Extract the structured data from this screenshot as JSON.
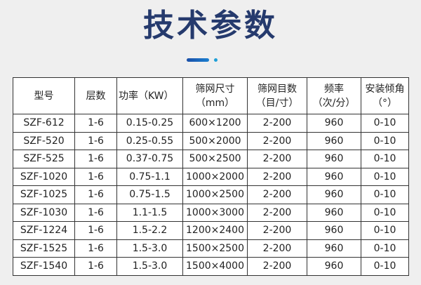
{
  "title": "技术参数",
  "accent_colors": {
    "title": "#253a6d",
    "bar": "#1a5fb8",
    "dot": "#1fa0d8"
  },
  "table": {
    "headers": [
      [
        "型号"
      ],
      [
        "层数"
      ],
      [
        "功率（KW）"
      ],
      [
        "筛网尺寸",
        "（mm）"
      ],
      [
        "筛网目数",
        "（目/寸）"
      ],
      [
        "频率",
        "（次/分）"
      ],
      [
        "安装倾角",
        "（°）"
      ]
    ],
    "rows": [
      [
        "SZF-612",
        "1-6",
        "0.15-0.25",
        "600×1200",
        "2-200",
        "960",
        "0-10"
      ],
      [
        "SZF-520",
        "1-6",
        "0.25-0.55",
        "500×2000",
        "2-200",
        "960",
        "0-10"
      ],
      [
        "SZF-525",
        "1-6",
        "0.37-0.75",
        "500×2500",
        "2-200",
        "960",
        "0-10"
      ],
      [
        "SZF-1020",
        "1-6",
        "0.75-1.1",
        "1000×2000",
        "2-200",
        "960",
        "0-10"
      ],
      [
        "SZF-1025",
        "1-6",
        "0.75-1.5",
        "1000×2500",
        "2-200",
        "960",
        "0-10"
      ],
      [
        "SZF-1030",
        "1-6",
        "1.1-1.5",
        "1000×3000",
        "2-200",
        "960",
        "0-10"
      ],
      [
        "SZF-1224",
        "1-6",
        "1.5-2.2",
        "1200×2400",
        "2-200",
        "960",
        "0-10"
      ],
      [
        "SZF-1525",
        "1-6",
        "1.5-3.0",
        "1500×2500",
        "2-200",
        "960",
        "0-10"
      ],
      [
        "SZF-1540",
        "1-6",
        "1.5-3.0",
        "1500×4000",
        "2-200",
        "960",
        "0-10"
      ]
    ]
  }
}
